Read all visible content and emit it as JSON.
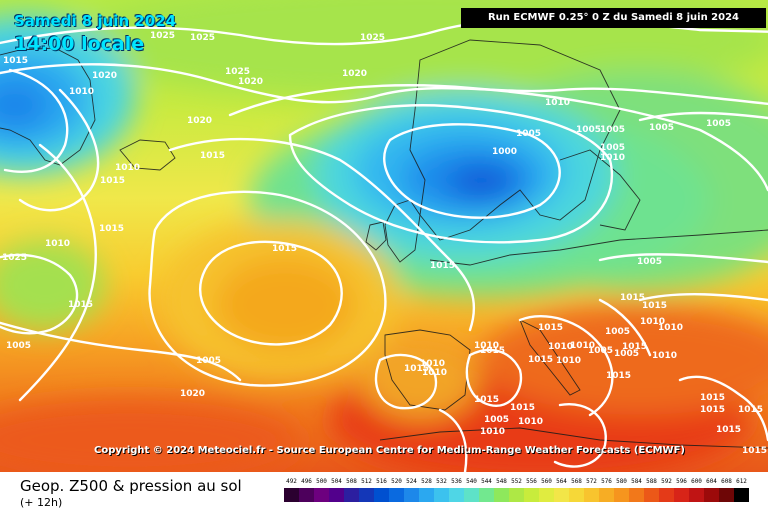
{
  "header": {
    "date": "Samedi 8 juin 2024",
    "time": "14:00 locale",
    "run": "Run ECMWF 0.25° 0 Z du Samedi 8 juin 2024"
  },
  "map": {
    "copyright": "Copyright © 2024 Meteociel.fr - Source European Centre for Medium-Range Weather Forecasts (ECMWF)",
    "pressure_labels": [
      "1025",
      "1025",
      "1025",
      "1015",
      "1010",
      "1020",
      "1025",
      "1020",
      "1020",
      "1010",
      "1020",
      "1015",
      "1010",
      "1015",
      "1005",
      "1000",
      "1005",
      "1005",
      "1005",
      "1005",
      "1005",
      "1010",
      "1015",
      "1015",
      "1005",
      "1010",
      "1015",
      "1025",
      "1015",
      "1015",
      "1005",
      "1005",
      "1020",
      "1005",
      "1015",
      "1015",
      "1010",
      "1010",
      "1015",
      "1015",
      "1010",
      "1010",
      "1015",
      "1010",
      "1010",
      "1010",
      "1015",
      "1015",
      "1010",
      "1005",
      "1010",
      "1005",
      "1005",
      "1015",
      "1015",
      "1010",
      "1010",
      "1015",
      "1015",
      "1015",
      "1015",
      "1015"
    ],
    "colors": {
      "contour": "#ffffff",
      "low_core": "#0a5ad8",
      "high_core": "#f4a516"
    }
  },
  "footer": {
    "title": "Geop. Z500 & pression au sol",
    "subtitle": "(+ 12h)"
  },
  "legend": {
    "values": [
      "492",
      "496",
      "500",
      "504",
      "508",
      "512",
      "516",
      "520",
      "524",
      "528",
      "532",
      "536",
      "540",
      "544",
      "548",
      "552",
      "556",
      "560",
      "564",
      "568",
      "572",
      "576",
      "580",
      "584",
      "588",
      "592",
      "596",
      "600",
      "604",
      "608",
      "612"
    ],
    "colors": [
      "#2b0030",
      "#4d005c",
      "#6d007f",
      "#52008c",
      "#2c1fa0",
      "#1437b8",
      "#0050d0",
      "#0a6ae0",
      "#1d88ea",
      "#2ba8f0",
      "#3cc2ee",
      "#4fd6e6",
      "#5ee2c8",
      "#72e88f",
      "#8ee85c",
      "#aee845",
      "#c8ec3c",
      "#e0ec40",
      "#f2e648",
      "#f6d838",
      "#f8c42e",
      "#f7ad24",
      "#f6951e",
      "#f2781a",
      "#ec5818",
      "#e43a18",
      "#d82418",
      "#c01414",
      "#9c0a0a",
      "#6e0606",
      "#000000"
    ]
  }
}
